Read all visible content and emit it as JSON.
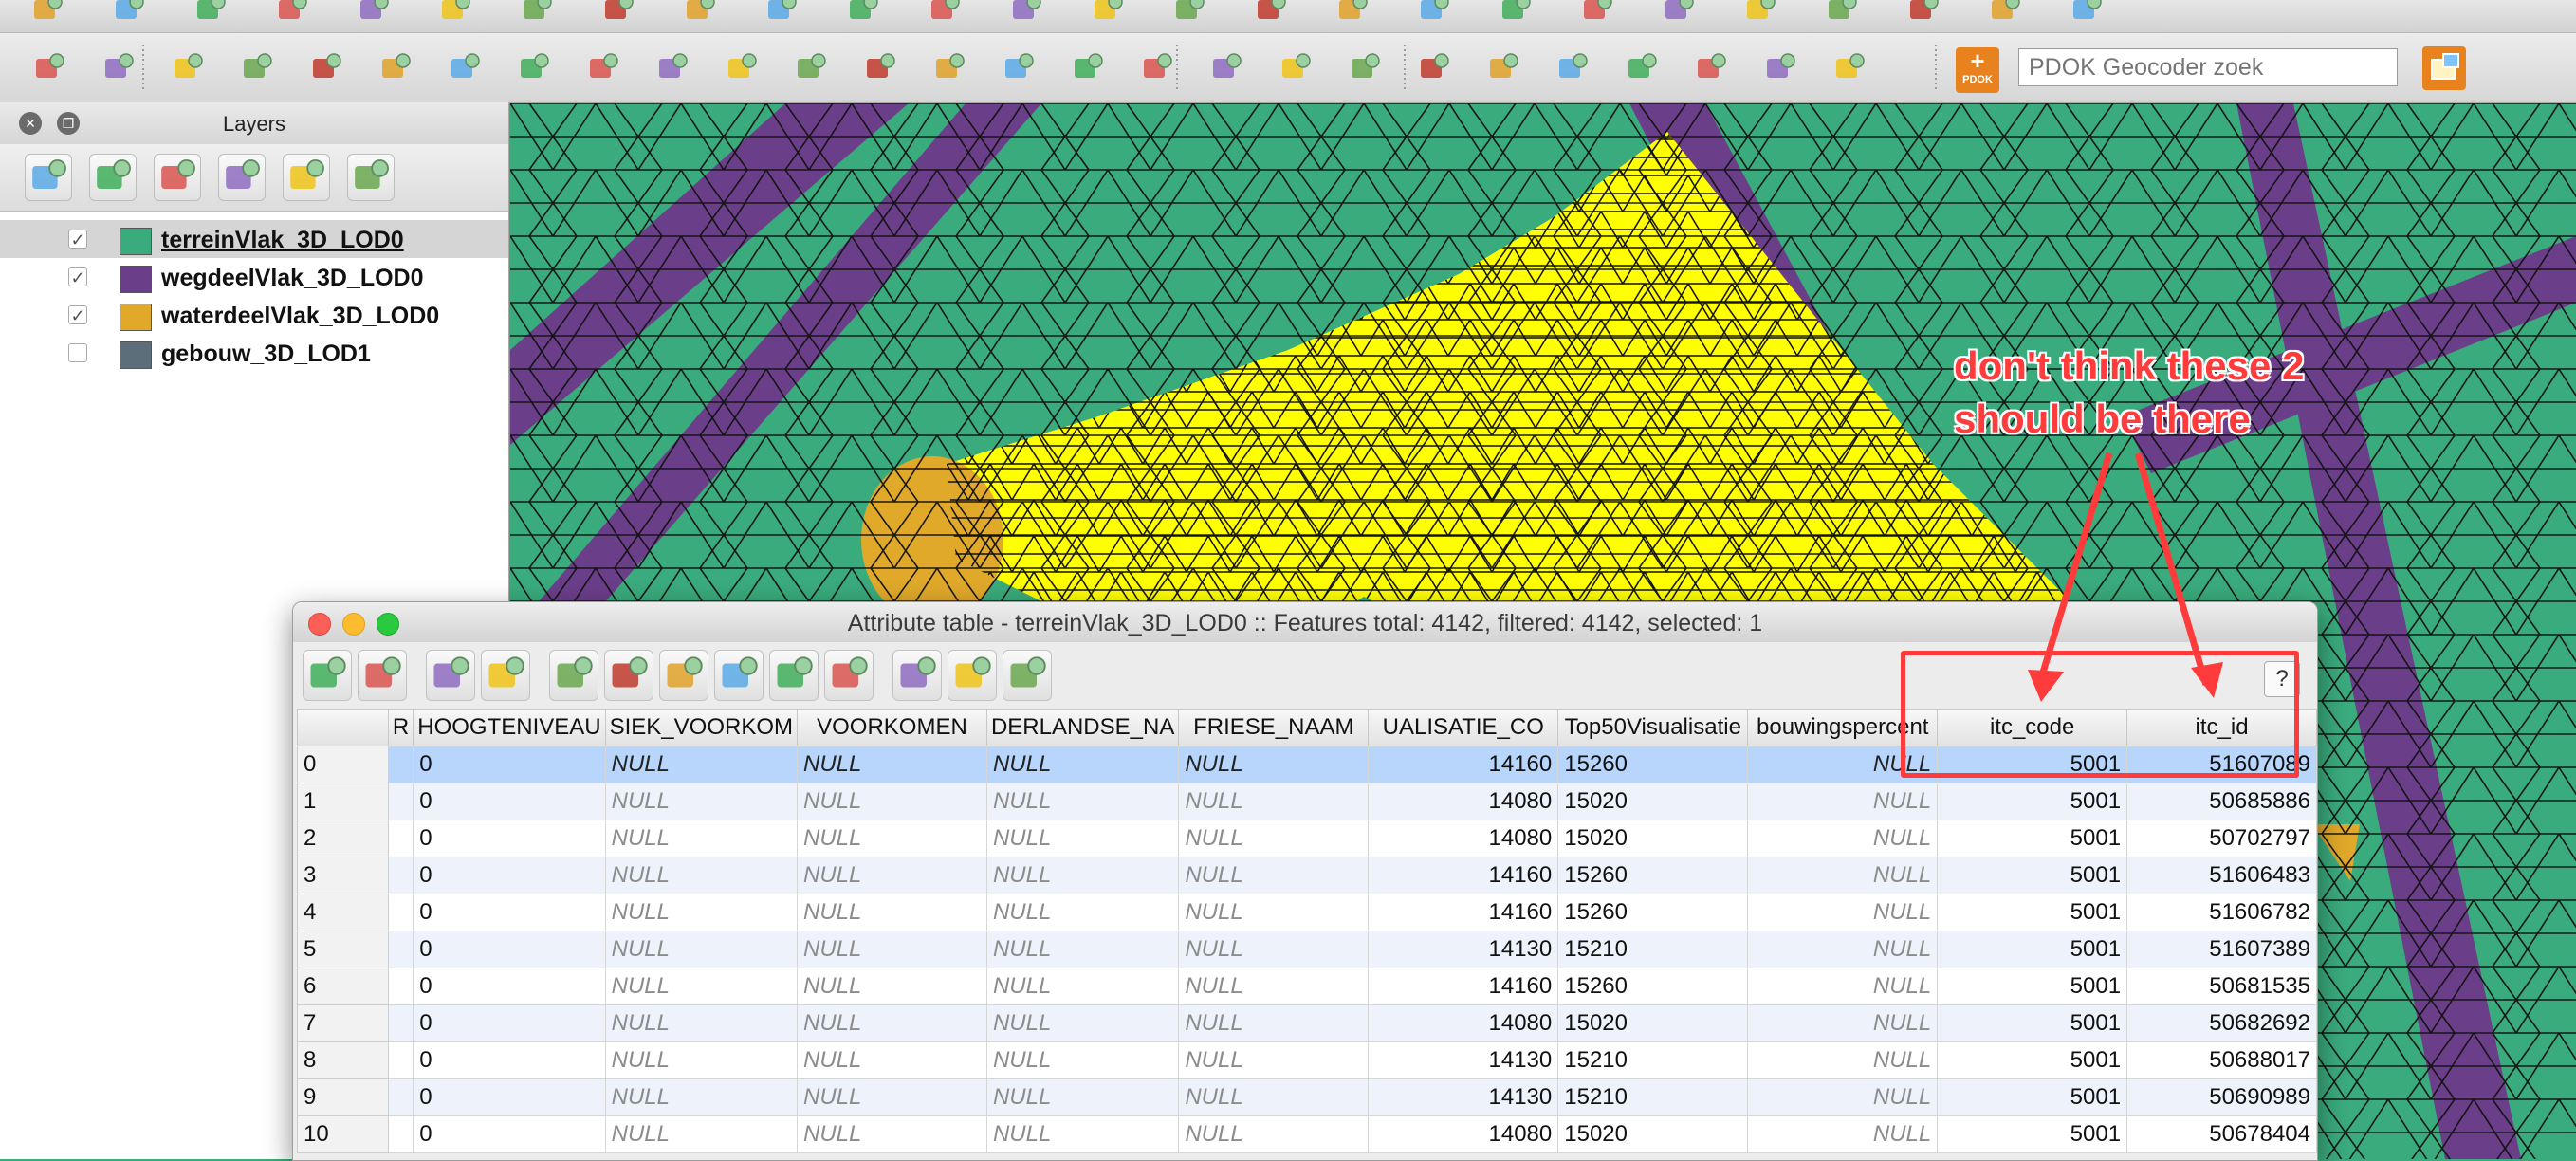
{
  "colors": {
    "terrain": "#3aab7c",
    "road": "#6b3e8a",
    "water": "#e0a92a",
    "building": "#5c6e7a",
    "highlight": "#ffff00",
    "annotation": "#ff3b3b"
  },
  "toolbar": {
    "top_icons": [
      "pencil-icon",
      "edit-icon",
      "star-icon",
      "move-icon",
      "tools-icon",
      "trash-icon",
      "cut-icon",
      "copy-icon",
      "paste-icon",
      "label-icon",
      "pin-icon",
      "bomb-icon",
      "eye-icon",
      "copy-style-icon",
      "paste-style-icon",
      "more-icon",
      "sheet-icon",
      "leaf-icon",
      "plugin-icon",
      "percent-icon",
      "wkt-icon",
      "p-red-icon",
      "p-blue-icon",
      "kt-icon",
      "code-icon",
      "pointer-icon"
    ],
    "main_icons": [
      "undo-icon",
      "redo-icon",
      "node-tool-icon",
      "simplify-icon",
      "add-ring-icon",
      "add-part-icon",
      "fill-ring-icon",
      "delete-ring-icon",
      "delete-part-icon",
      "reshape-icon",
      "offset-curve-icon",
      "split-features-icon",
      "split-parts-icon",
      "merge-features-icon",
      "merge-attributes-icon",
      "rotate-point-icon",
      "rotate-icon",
      "layer-raster-icon",
      "layer-star-icon",
      "layer-remove-icon",
      "new-shapefile-icon",
      "new-spatialite-icon",
      "new-layer-icon",
      "edit-layer-icon",
      "zoom-layer-icon",
      "measure-icon",
      "annotate-icon"
    ],
    "pdok_label": "PDOK",
    "geocoder_placeholder": "PDOK Geocoder zoek"
  },
  "layers_panel": {
    "title": "Layers",
    "tools": [
      "open-layer-styling-icon",
      "manage-visibility-icon",
      "filter-legend-icon",
      "expand-all-icon",
      "collapse-all-icon",
      "remove-layer-icon"
    ],
    "layers": [
      {
        "name": "terreinVlak_3D_LOD0",
        "checked": true,
        "color": "#3aab7c",
        "selected": true
      },
      {
        "name": "wegdeelVlak_3D_LOD0",
        "checked": true,
        "color": "#6b3e8a",
        "selected": false
      },
      {
        "name": "waterdeelVlak_3D_LOD0",
        "checked": true,
        "color": "#e0a92a",
        "selected": false
      },
      {
        "name": "gebouw_3D_LOD1",
        "checked": false,
        "color": "#5c6e7a",
        "selected": false
      }
    ]
  },
  "annotation": {
    "line1": "don't think these 2",
    "line2": "should be there"
  },
  "attribute_table": {
    "title": "Attribute table - terreinVlak_3D_LOD0 :: Features total: 4142, filtered: 4142, selected: 1",
    "tools": [
      "toggle-editing-icon",
      "save-edits-icon",
      "delete-selected-icon",
      "select-expression-icon",
      "deselect-icon",
      "move-selection-top-icon",
      "invert-selection-icon",
      "pan-to-selection-icon",
      "zoom-to-selection-icon",
      "copy-rows-icon",
      "delete-column-icon",
      "new-column-icon",
      "field-calculator-icon"
    ],
    "help_label": "?",
    "columns": [
      "R",
      "HOOGTENIVEAU",
      "FYSIEK_VOORKOMEN",
      "VOORKOMEN",
      "NEDERLANDSE_NAAM",
      "FRIESE_NAAM",
      "VISUALISATIE_CODE",
      "Top50Visualisatie",
      "bebouwingspercentage",
      "itc_code",
      "itc_id"
    ],
    "column_display": [
      "R",
      "HOOGTENIVEAU",
      "SIEK_VOORKOM",
      "VOORKOMEN",
      "DERLANDSE_NA",
      "FRIESE_NAAM",
      "UALISATIE_CO",
      "Top50Visualisatie",
      "bouwingspercent",
      "itc_code",
      "itc_id"
    ],
    "rows": [
      {
        "id": "0",
        "hoogte": "0",
        "fysiek": "NULL",
        "voorkomen": "NULL",
        "ned": "NULL",
        "fries": "NULL",
        "vis": "14160",
        "top50": "15260",
        "bebouw": "NULL",
        "itc_code": "5001",
        "itc_id": "51607089",
        "selected": true
      },
      {
        "id": "1",
        "hoogte": "0",
        "fysiek": "NULL",
        "voorkomen": "NULL",
        "ned": "NULL",
        "fries": "NULL",
        "vis": "14080",
        "top50": "15020",
        "bebouw": "NULL",
        "itc_code": "5001",
        "itc_id": "50685886",
        "selected": false
      },
      {
        "id": "2",
        "hoogte": "0",
        "fysiek": "NULL",
        "voorkomen": "NULL",
        "ned": "NULL",
        "fries": "NULL",
        "vis": "14080",
        "top50": "15020",
        "bebouw": "NULL",
        "itc_code": "5001",
        "itc_id": "50702797",
        "selected": false
      },
      {
        "id": "3",
        "hoogte": "0",
        "fysiek": "NULL",
        "voorkomen": "NULL",
        "ned": "NULL",
        "fries": "NULL",
        "vis": "14160",
        "top50": "15260",
        "bebouw": "NULL",
        "itc_code": "5001",
        "itc_id": "51606483",
        "selected": false
      },
      {
        "id": "4",
        "hoogte": "0",
        "fysiek": "NULL",
        "voorkomen": "NULL",
        "ned": "NULL",
        "fries": "NULL",
        "vis": "14160",
        "top50": "15260",
        "bebouw": "NULL",
        "itc_code": "5001",
        "itc_id": "51606782",
        "selected": false
      },
      {
        "id": "5",
        "hoogte": "0",
        "fysiek": "NULL",
        "voorkomen": "NULL",
        "ned": "NULL",
        "fries": "NULL",
        "vis": "14130",
        "top50": "15210",
        "bebouw": "NULL",
        "itc_code": "5001",
        "itc_id": "51607389",
        "selected": false
      },
      {
        "id": "6",
        "hoogte": "0",
        "fysiek": "NULL",
        "voorkomen": "NULL",
        "ned": "NULL",
        "fries": "NULL",
        "vis": "14160",
        "top50": "15260",
        "bebouw": "NULL",
        "itc_code": "5001",
        "itc_id": "50681535",
        "selected": false
      },
      {
        "id": "7",
        "hoogte": "0",
        "fysiek": "NULL",
        "voorkomen": "NULL",
        "ned": "NULL",
        "fries": "NULL",
        "vis": "14080",
        "top50": "15020",
        "bebouw": "NULL",
        "itc_code": "5001",
        "itc_id": "50682692",
        "selected": false
      },
      {
        "id": "8",
        "hoogte": "0",
        "fysiek": "NULL",
        "voorkomen": "NULL",
        "ned": "NULL",
        "fries": "NULL",
        "vis": "14130",
        "top50": "15210",
        "bebouw": "NULL",
        "itc_code": "5001",
        "itc_id": "50688017",
        "selected": false
      },
      {
        "id": "9",
        "hoogte": "0",
        "fysiek": "NULL",
        "voorkomen": "NULL",
        "ned": "NULL",
        "fries": "NULL",
        "vis": "14130",
        "top50": "15210",
        "bebouw": "NULL",
        "itc_code": "5001",
        "itc_id": "50690989",
        "selected": false
      },
      {
        "id": "10",
        "hoogte": "0",
        "fysiek": "NULL",
        "voorkomen": "NULL",
        "ned": "NULL",
        "fries": "NULL",
        "vis": "14080",
        "top50": "15020",
        "bebouw": "NULL",
        "itc_code": "5001",
        "itc_id": "50678404",
        "selected": false
      }
    ]
  }
}
